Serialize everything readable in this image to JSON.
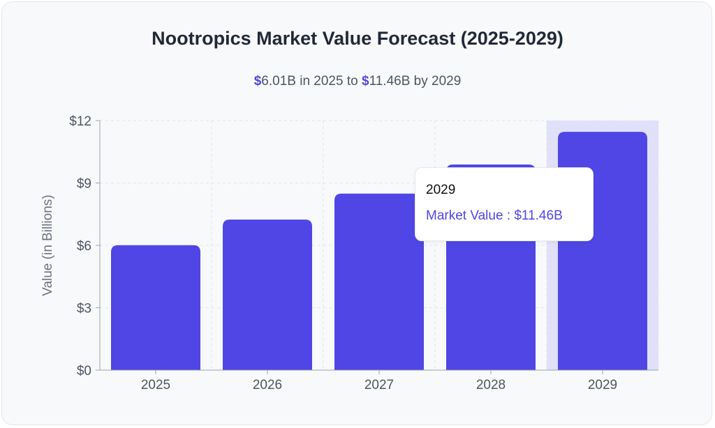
{
  "chart_data": {
    "type": "bar",
    "title": "Nootropics Market Value Forecast (2025-2029)",
    "subtitle": {
      "start_value": "6.01B",
      "start_text": " in 2025 to ",
      "end_value": "11.46B",
      "end_text": " by 2029",
      "currency": "$"
    },
    "categories": [
      "2025",
      "2026",
      "2027",
      "2028",
      "2029"
    ],
    "series": [
      {
        "name": "Market Value",
        "values": [
          6.01,
          7.24,
          8.49,
          9.89,
          11.46
        ]
      }
    ],
    "ylabel": "Value (in Billions)",
    "xlabel": "",
    "ylim": [
      0,
      12
    ],
    "yticks": [
      0,
      3,
      6,
      9,
      12
    ],
    "ytick_labels": [
      "$0",
      "$3",
      "$6",
      "$9",
      "$12"
    ],
    "grid": true,
    "bar_color": "#4f46e5",
    "highlight_color": "#e0e0f8",
    "highlighted_category": "2029",
    "tooltip": {
      "label": "2029",
      "value": "Market Value : $11.46B"
    }
  }
}
